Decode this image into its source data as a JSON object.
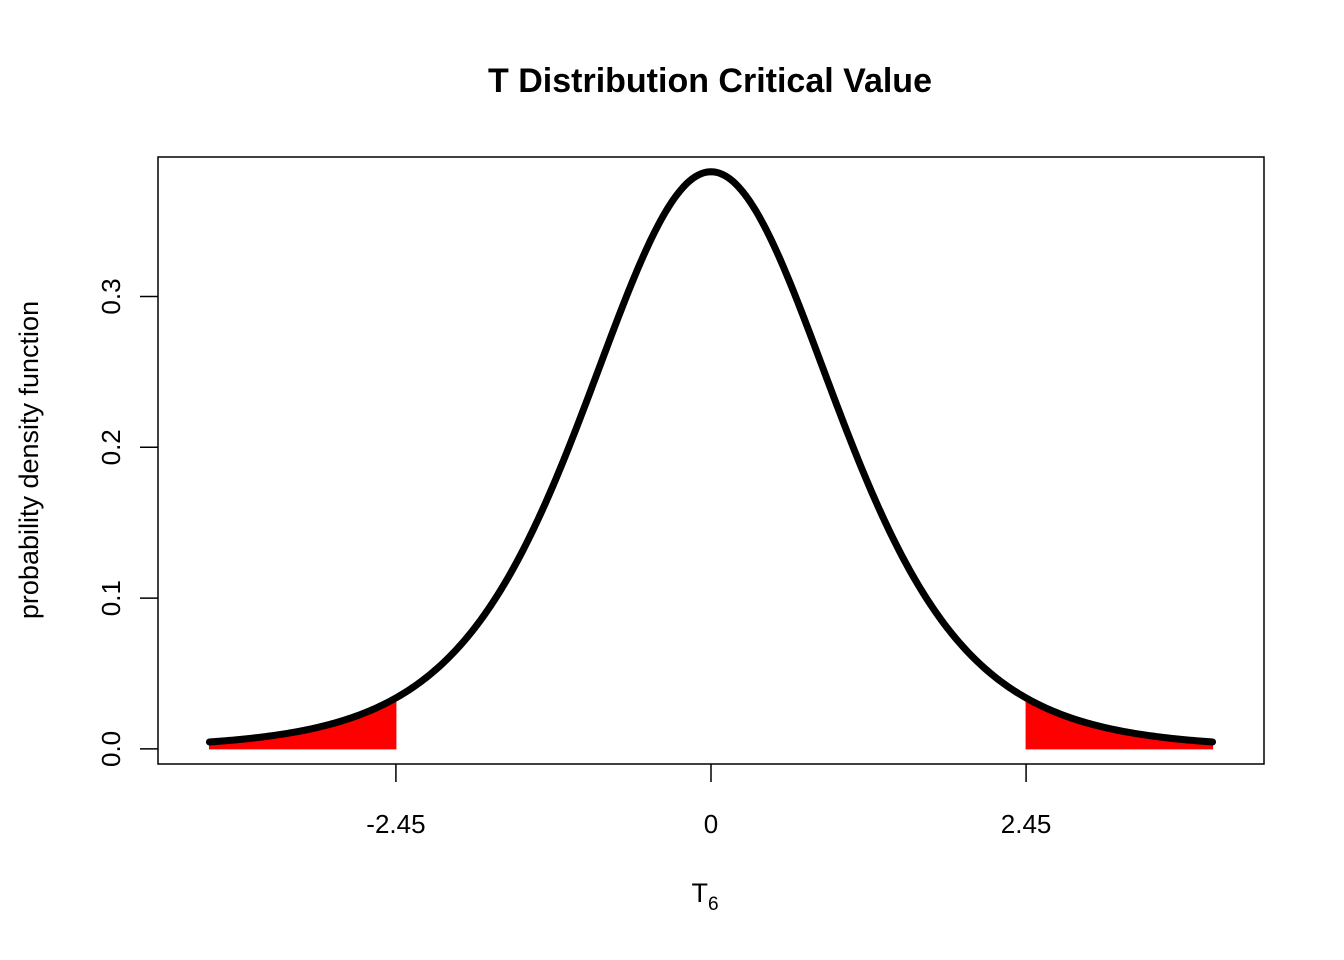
{
  "chart_data": {
    "type": "area",
    "title": "T Distribution Critical Value",
    "xlabel": "T",
    "xlabel_subscript": "6",
    "ylabel": "probability  density  function",
    "distribution": "t",
    "degrees_of_freedom": 6,
    "xlim": [
      -4.3,
      4.3
    ],
    "ylim": [
      -0.01,
      0.3925
    ],
    "curve_x_range": [
      -3.9,
      3.9
    ],
    "x_ticks": [
      -2.45,
      0,
      2.45
    ],
    "x_tick_labels": [
      "-2.45",
      "0",
      "2.45"
    ],
    "y_ticks": [
      0.0,
      0.1,
      0.2,
      0.3
    ],
    "y_tick_labels": [
      "0.0",
      "0.1",
      "0.2",
      "0.3"
    ],
    "critical_value": 2.45,
    "shaded_regions": [
      {
        "from": -3.9,
        "to": -2.45
      },
      {
        "from": 2.45,
        "to": 3.9
      }
    ],
    "peak_density": 0.383,
    "grid": false,
    "curve_color": "#000000",
    "shade_color": "#ff0000"
  }
}
